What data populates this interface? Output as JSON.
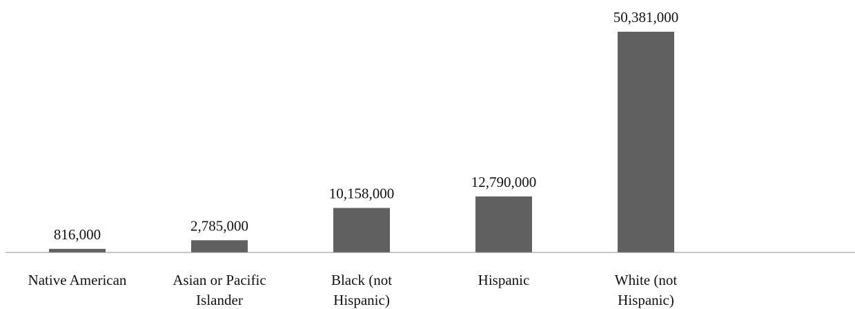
{
  "chart_data": {
    "type": "bar",
    "categories": [
      [
        "Native American"
      ],
      [
        "Asian or Pacific",
        "Islander"
      ],
      [
        "Black (not",
        "Hispanic)"
      ],
      [
        "Hispanic"
      ],
      [
        "White (not",
        "Hispanic)"
      ]
    ],
    "values": [
      816000,
      2785000,
      10158000,
      12790000,
      50381000
    ],
    "data_labels": [
      "816,000",
      "2,785,000",
      "10,158,000",
      "12,790,000",
      "50,381,000"
    ],
    "colors": {
      "bar": "#606060",
      "axis": "#8c8c8c",
      "text": "#111111"
    },
    "grid": false,
    "legend": "none",
    "ylim": [
      0,
      50381000
    ]
  }
}
